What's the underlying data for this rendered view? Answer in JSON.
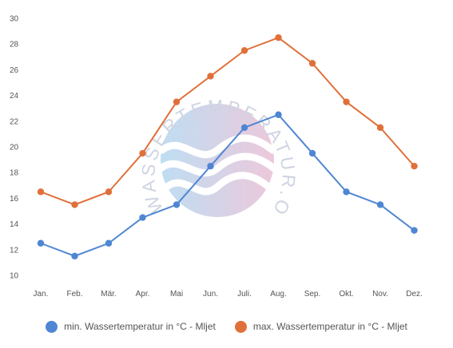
{
  "watermark": {
    "text": "WASSERTEMPERATUR.ORG",
    "colors": {
      "blue": "#a9d3ef",
      "pink": "#e7b6cf",
      "text": "#bfc6d8"
    }
  },
  "chart_data": {
    "type": "line",
    "categories": [
      "Jan.",
      "Feb.",
      "Mär.",
      "Apr.",
      "Mai",
      "Jun.",
      "Juli.",
      "Aug.",
      "Sep.",
      "Okt.",
      "Nov.",
      "Dez."
    ],
    "y_ticks": [
      10,
      12,
      14,
      16,
      18,
      20,
      22,
      24,
      26,
      28,
      30
    ],
    "ylim": [
      10,
      30
    ],
    "grid": false,
    "legend_position": "bottom",
    "series": [
      {
        "name": "min. Wassertemperatur in °C - Mljet",
        "color": "#4f86d3",
        "values": [
          12.5,
          11.5,
          12.5,
          14.5,
          15.5,
          18.5,
          21.5,
          22.5,
          19.5,
          16.5,
          15.5,
          13.5
        ]
      },
      {
        "name": "max. Wassertemperatur in °C - Mljet",
        "color": "#e0703a",
        "values": [
          16.5,
          15.5,
          16.5,
          19.5,
          23.5,
          25.5,
          27.5,
          28.5,
          26.5,
          23.5,
          21.5,
          18.5
        ]
      }
    ]
  }
}
